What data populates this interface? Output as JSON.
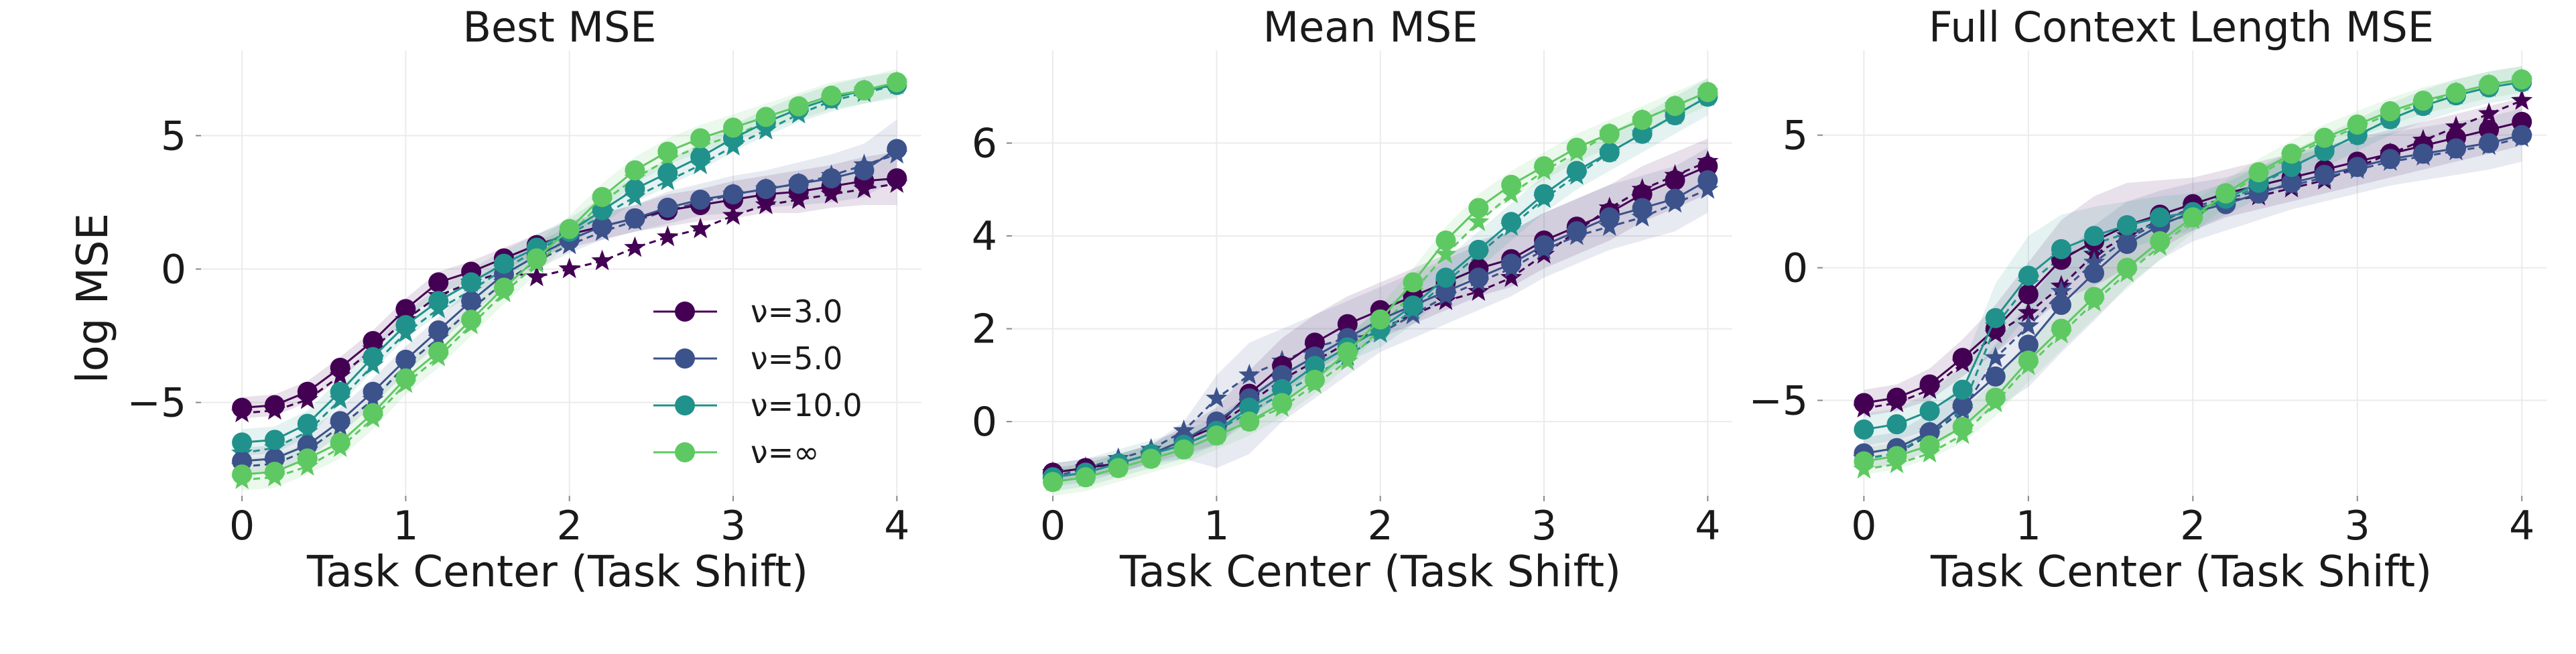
{
  "chart_data": [
    {
      "type": "line",
      "title": "Best MSE",
      "xlabel": "Task Center (Task Shift)",
      "ylabel": "log MSE",
      "xlim": [
        -0.25,
        4.15
      ],
      "ylim": [
        -8.5,
        8.2
      ],
      "xticks": [
        0,
        1,
        2,
        3,
        4
      ],
      "xtick_labels": [
        "0",
        "1",
        "2",
        "3",
        "4"
      ],
      "yticks": [
        -5,
        0,
        5
      ],
      "ytick_labels": [
        "−5",
        "0",
        "5"
      ],
      "grid": true,
      "legend": "lower-right",
      "x": [
        0,
        0.2,
        0.4,
        0.6,
        0.8,
        1.0,
        1.2,
        1.4,
        1.6,
        1.8,
        2.0,
        2.2,
        2.4,
        2.6,
        2.8,
        3.0,
        3.2,
        3.4,
        3.6,
        3.8,
        4.0
      ],
      "series": [
        {
          "name": "ν=3.0",
          "color": "#440154",
          "values": [
            -5.2,
            -5.1,
            -4.6,
            -3.7,
            -2.7,
            -1.5,
            -0.5,
            -0.1,
            0.4,
            0.9,
            1.3,
            1.6,
            1.9,
            2.2,
            2.4,
            2.6,
            2.8,
            2.9,
            3.1,
            3.3,
            3.4
          ],
          "dashed_values": [
            -5.4,
            -5.3,
            -4.9,
            -4.0,
            -3.0,
            -1.9,
            -1.0,
            -0.5,
            -0.1,
            -0.3,
            0.0,
            0.3,
            0.8,
            1.2,
            1.5,
            2.0,
            2.4,
            2.6,
            2.8,
            3.0,
            3.2
          ],
          "band": [
            0.4,
            0.4,
            0.4,
            0.4,
            0.4,
            0.4,
            0.4,
            0.4,
            0.4,
            0.4,
            0.5,
            0.5,
            0.5,
            0.6,
            0.6,
            0.7,
            0.7,
            0.8,
            0.8,
            0.9,
            1.0
          ]
        },
        {
          "name": "ν=5.0",
          "color": "#3b528b",
          "values": [
            -7.2,
            -7.1,
            -6.6,
            -5.7,
            -4.6,
            -3.4,
            -2.3,
            -1.2,
            -0.2,
            0.5,
            1.1,
            1.6,
            1.9,
            2.3,
            2.6,
            2.8,
            3.0,
            3.2,
            3.4,
            3.7,
            4.5
          ],
          "dashed_values": [
            -7.4,
            -7.3,
            -6.8,
            -5.9,
            -4.9,
            -3.6,
            -2.6,
            -1.5,
            -0.5,
            0.3,
            0.9,
            1.4,
            1.8,
            2.2,
            2.5,
            2.8,
            3.0,
            3.2,
            3.5,
            3.9,
            4.3
          ],
          "band": [
            0.5,
            0.5,
            0.5,
            0.5,
            0.5,
            0.5,
            0.5,
            0.5,
            0.5,
            0.5,
            0.5,
            0.5,
            0.5,
            0.6,
            0.6,
            0.7,
            0.7,
            0.8,
            0.9,
            1.0,
            1.1
          ]
        },
        {
          "name": "ν=10.0",
          "color": "#21918c",
          "values": [
            -6.5,
            -6.4,
            -5.8,
            -4.6,
            -3.3,
            -2.1,
            -1.2,
            -0.5,
            0.2,
            0.8,
            1.4,
            2.2,
            3.0,
            3.6,
            4.2,
            4.9,
            5.5,
            6.0,
            6.4,
            6.7,
            6.9
          ],
          "dashed_values": [
            -6.9,
            -6.7,
            -6.1,
            -4.9,
            -3.6,
            -2.4,
            -1.5,
            -0.8,
            0.0,
            0.7,
            1.3,
            2.0,
            2.7,
            3.3,
            3.9,
            4.6,
            5.2,
            5.8,
            6.3,
            6.6,
            6.9
          ],
          "band": [
            0.5,
            0.5,
            0.5,
            0.5,
            0.5,
            0.5,
            0.5,
            0.5,
            0.5,
            0.5,
            0.5,
            0.5,
            0.5,
            0.5,
            0.5,
            0.5,
            0.5,
            0.5,
            0.5,
            0.5,
            0.5
          ]
        },
        {
          "name": "ν=∞",
          "color": "#5ec962",
          "values": [
            -7.7,
            -7.6,
            -7.1,
            -6.5,
            -5.4,
            -4.1,
            -3.1,
            -1.9,
            -0.7,
            0.4,
            1.5,
            2.7,
            3.7,
            4.4,
            4.9,
            5.3,
            5.7,
            6.1,
            6.5,
            6.7,
            7.0
          ],
          "dashed_values": [
            -7.9,
            -7.8,
            -7.4,
            -6.7,
            -5.6,
            -4.3,
            -3.3,
            -2.1,
            -0.9,
            0.2,
            1.3,
            2.5,
            3.4,
            4.1,
            4.6,
            5.0,
            5.5,
            6.0,
            6.4,
            6.7,
            7.0
          ],
          "band": [
            0.6,
            0.6,
            0.6,
            0.6,
            0.6,
            0.6,
            0.6,
            0.6,
            0.6,
            0.6,
            0.5,
            0.5,
            0.5,
            0.5,
            0.5,
            0.5,
            0.5,
            0.5,
            0.5,
            0.5,
            0.5
          ]
        }
      ]
    },
    {
      "type": "line",
      "title": "Mean MSE",
      "xlabel": "Task Center (Task Shift)",
      "ylabel": "",
      "xlim": [
        -0.25,
        4.15
      ],
      "ylim": [
        -1.6,
        8.0
      ],
      "xticks": [
        0,
        1,
        2,
        3,
        4
      ],
      "xtick_labels": [
        "0",
        "1",
        "2",
        "3",
        "4"
      ],
      "yticks": [
        0,
        2,
        4,
        6
      ],
      "ytick_labels": [
        "0",
        "2",
        "4",
        "6"
      ],
      "grid": true,
      "legend": "none",
      "x": [
        0,
        0.2,
        0.4,
        0.6,
        0.8,
        1.0,
        1.2,
        1.4,
        1.6,
        1.8,
        2.0,
        2.2,
        2.4,
        2.6,
        2.8,
        3.0,
        3.2,
        3.4,
        3.6,
        3.8,
        4.0
      ],
      "series": [
        {
          "name": "ν=3.0",
          "color": "#440154",
          "values": [
            -1.1,
            -1.0,
            -0.9,
            -0.7,
            -0.4,
            -0.1,
            0.6,
            1.2,
            1.7,
            2.1,
            2.4,
            2.7,
            3.0,
            3.3,
            3.5,
            3.9,
            4.2,
            4.5,
            4.9,
            5.2,
            5.5
          ],
          "dashed_values": [
            -1.1,
            -1.0,
            -0.9,
            -0.7,
            -0.4,
            -0.1,
            0.4,
            0.9,
            1.3,
            1.7,
            2.0,
            2.3,
            2.6,
            2.8,
            3.1,
            3.6,
            4.1,
            4.6,
            5.0,
            5.3,
            5.6
          ],
          "band": [
            0.2,
            0.2,
            0.2,
            0.2,
            0.3,
            0.4,
            0.5,
            0.6,
            0.6,
            0.6,
            0.6,
            0.6,
            0.6,
            0.6,
            0.6,
            0.6,
            0.6,
            0.6,
            0.6,
            0.6,
            0.6
          ]
        },
        {
          "name": "ν=5.0",
          "color": "#3b528b",
          "values": [
            -1.2,
            -1.1,
            -0.9,
            -0.7,
            -0.4,
            0.0,
            0.5,
            1.0,
            1.4,
            1.8,
            2.2,
            2.5,
            2.8,
            3.1,
            3.4,
            3.8,
            4.1,
            4.4,
            4.6,
            4.8,
            5.2
          ],
          "dashed_values": [
            -1.2,
            -1.0,
            -0.8,
            -0.6,
            -0.2,
            0.5,
            1.0,
            1.3,
            1.6,
            1.8,
            1.9,
            2.3,
            2.7,
            3.0,
            3.3,
            3.7,
            4.0,
            4.2,
            4.4,
            4.7,
            5.0
          ],
          "band": [
            0.2,
            0.2,
            0.2,
            0.2,
            0.4,
            1.0,
            1.2,
            1.0,
            0.9,
            0.8,
            0.7,
            0.7,
            0.7,
            0.7,
            0.7,
            0.7,
            0.7,
            0.7,
            0.7,
            0.7,
            0.7
          ]
        },
        {
          "name": "ν=10.0",
          "color": "#21918c",
          "values": [
            -1.2,
            -1.1,
            -0.9,
            -0.7,
            -0.5,
            -0.2,
            0.3,
            0.7,
            1.2,
            1.6,
            2.0,
            2.5,
            3.1,
            3.7,
            4.3,
            4.9,
            5.4,
            5.8,
            6.2,
            6.6,
            7.0
          ],
          "dashed_values": [
            -1.2,
            -1.1,
            -0.9,
            -0.7,
            -0.5,
            -0.2,
            0.2,
            0.6,
            1.0,
            1.4,
            1.9,
            2.4,
            3.0,
            3.6,
            4.2,
            4.8,
            5.3,
            5.8,
            6.2,
            6.6,
            7.0
          ],
          "band": [
            0.3,
            0.3,
            0.3,
            0.3,
            0.3,
            0.3,
            0.3,
            0.3,
            0.3,
            0.3,
            0.4,
            0.4,
            0.4,
            0.4,
            0.4,
            0.4,
            0.4,
            0.4,
            0.4,
            0.4,
            0.4
          ]
        },
        {
          "name": "ν=∞",
          "color": "#5ec962",
          "values": [
            -1.3,
            -1.2,
            -1.0,
            -0.8,
            -0.6,
            -0.3,
            0.0,
            0.4,
            0.9,
            1.5,
            2.2,
            3.0,
            3.9,
            4.6,
            5.1,
            5.5,
            5.9,
            6.2,
            6.5,
            6.8,
            7.1
          ],
          "dashed_values": [
            -1.3,
            -1.2,
            -1.0,
            -0.8,
            -0.6,
            -0.3,
            0.0,
            0.3,
            0.8,
            1.3,
            2.0,
            2.8,
            3.6,
            4.3,
            4.9,
            5.4,
            5.8,
            6.2,
            6.5,
            6.8,
            7.1
          ],
          "band": [
            0.3,
            0.3,
            0.3,
            0.3,
            0.3,
            0.3,
            0.3,
            0.3,
            0.3,
            0.3,
            0.3,
            0.3,
            0.3,
            0.3,
            0.3,
            0.3,
            0.3,
            0.3,
            0.3,
            0.3,
            0.3
          ]
        }
      ]
    },
    {
      "type": "line",
      "title": "Full Context Length MSE",
      "xlabel": "Task Center (Task Shift)",
      "ylabel": "",
      "xlim": [
        -0.25,
        4.15
      ],
      "ylim": [
        -8.6,
        8.2
      ],
      "xticks": [
        0,
        1,
        2,
        3,
        4
      ],
      "xtick_labels": [
        "0",
        "1",
        "2",
        "3",
        "4"
      ],
      "yticks": [
        -5,
        0,
        5
      ],
      "ytick_labels": [
        "−5",
        "0",
        "5"
      ],
      "grid": true,
      "legend": "none",
      "x": [
        0,
        0.2,
        0.4,
        0.6,
        0.8,
        1.0,
        1.2,
        1.4,
        1.6,
        1.8,
        2.0,
        2.2,
        2.4,
        2.6,
        2.8,
        3.0,
        3.2,
        3.4,
        3.6,
        3.8,
        4.0
      ],
      "series": [
        {
          "name": "ν=3.0",
          "color": "#440154",
          "values": [
            -5.1,
            -4.9,
            -4.4,
            -3.4,
            -2.3,
            -1.0,
            0.3,
            1.0,
            1.6,
            2.0,
            2.4,
            2.8,
            3.1,
            3.4,
            3.7,
            4.0,
            4.3,
            4.6,
            4.9,
            5.2,
            5.5
          ],
          "dashed_values": [
            -5.3,
            -5.1,
            -4.6,
            -3.6,
            -2.5,
            -1.7,
            -0.7,
            0.5,
            1.2,
            1.8,
            2.2,
            2.5,
            2.7,
            3.0,
            3.3,
            3.8,
            4.3,
            4.8,
            5.3,
            5.8,
            6.3
          ],
          "band": [
            0.5,
            0.5,
            0.6,
            0.7,
            0.9,
            1.2,
            1.5,
            1.7,
            1.6,
            1.3,
            1.0,
            0.9,
            0.9,
            0.9,
            0.9,
            0.9,
            0.9,
            0.9,
            0.9,
            0.9,
            0.9
          ]
        },
        {
          "name": "ν=5.0",
          "color": "#3b528b",
          "values": [
            -7.0,
            -6.8,
            -6.2,
            -5.2,
            -4.1,
            -2.9,
            -1.4,
            -0.2,
            0.9,
            1.6,
            2.1,
            2.4,
            2.8,
            3.2,
            3.5,
            3.8,
            4.1,
            4.3,
            4.5,
            4.7,
            5.0
          ],
          "dashed_values": [
            -7.2,
            -7.0,
            -6.3,
            -5.4,
            -3.4,
            -2.2,
            -0.9,
            0.2,
            1.1,
            1.7,
            2.3,
            2.6,
            2.9,
            3.1,
            3.4,
            3.7,
            4.0,
            4.2,
            4.4,
            4.6,
            4.9
          ],
          "band": [
            0.6,
            0.6,
            0.7,
            0.8,
            1.2,
            1.6,
            1.8,
            1.8,
            1.6,
            1.3,
            1.1,
            1.0,
            1.0,
            1.0,
            1.0,
            1.0,
            1.0,
            1.0,
            1.0,
            1.0,
            1.0
          ]
        },
        {
          "name": "ν=10.0",
          "color": "#21918c",
          "values": [
            -6.1,
            -5.9,
            -5.4,
            -4.6,
            -1.9,
            -0.3,
            0.7,
            1.2,
            1.6,
            1.9,
            2.1,
            2.6,
            3.2,
            3.8,
            4.4,
            5.0,
            5.6,
            6.1,
            6.5,
            6.8,
            7.0
          ],
          "dashed_values": [
            -7.2,
            -7.0,
            -6.2,
            -5.3,
            -2.2,
            -0.6,
            0.4,
            0.9,
            1.3,
            1.7,
            2.0,
            2.5,
            3.1,
            3.8,
            4.4,
            5.0,
            5.6,
            6.1,
            6.5,
            6.8,
            7.0
          ],
          "band": [
            0.6,
            0.6,
            0.7,
            0.9,
            1.3,
            1.5,
            1.3,
            1.1,
            0.9,
            0.8,
            0.7,
            0.6,
            0.6,
            0.6,
            0.6,
            0.6,
            0.6,
            0.6,
            0.6,
            0.6,
            0.6
          ]
        },
        {
          "name": "ν=∞",
          "color": "#5ec962",
          "values": [
            -7.3,
            -7.1,
            -6.7,
            -6.0,
            -4.9,
            -3.5,
            -2.3,
            -1.1,
            0.0,
            1.0,
            1.9,
            2.8,
            3.6,
            4.3,
            4.9,
            5.4,
            5.9,
            6.3,
            6.6,
            6.9,
            7.1
          ],
          "dashed_values": [
            -7.6,
            -7.4,
            -7.0,
            -6.3,
            -5.1,
            -3.7,
            -2.5,
            -1.3,
            -0.2,
            0.8,
            1.8,
            2.7,
            3.5,
            4.2,
            4.8,
            5.3,
            5.8,
            6.2,
            6.6,
            6.9,
            7.1
          ],
          "band": [
            0.5,
            0.5,
            0.5,
            0.6,
            0.7,
            0.8,
            0.8,
            0.8,
            0.8,
            0.7,
            0.6,
            0.5,
            0.5,
            0.5,
            0.5,
            0.5,
            0.5,
            0.5,
            0.5,
            0.5,
            0.5
          ]
        }
      ]
    }
  ]
}
